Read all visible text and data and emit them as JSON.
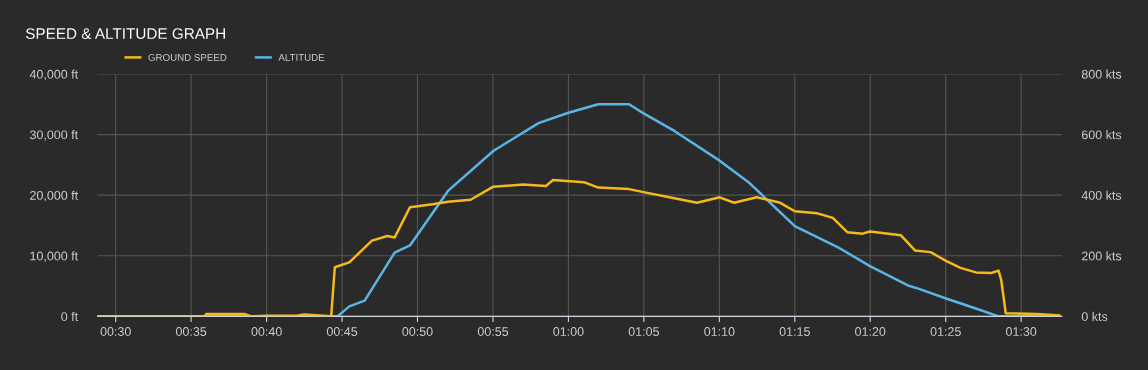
{
  "chart_data": {
    "type": "line",
    "title": "SPEED & ALTITUDE GRAPH",
    "series": [
      {
        "name": "GROUND SPEED",
        "color": "#f5b91d",
        "axis": "y2",
        "x": [
          0.48,
          0.598,
          0.6,
          0.642,
          0.65,
          0.667,
          0.7,
          0.708,
          0.738,
          0.742,
          0.758,
          0.783,
          0.8,
          0.808,
          0.825,
          0.85,
          0.867,
          0.892,
          0.917,
          0.95,
          0.975,
          0.983,
          1.017,
          1.033,
          1.067,
          1.083,
          1.117,
          1.142,
          1.167,
          1.183,
          1.208,
          1.233,
          1.25,
          1.275,
          1.292,
          1.308,
          1.325,
          1.333,
          1.367,
          1.383,
          1.4,
          1.417,
          1.433,
          1.45,
          1.467,
          1.475,
          1.478,
          1.483,
          1.517,
          1.542
        ],
        "values": [
          0,
          0,
          8,
          8,
          0,
          2,
          2,
          6,
          0,
          162,
          178,
          250,
          265,
          260,
          360,
          370,
          378,
          385,
          428,
          435,
          430,
          450,
          443,
          425,
          420,
          410,
          390,
          375,
          393,
          375,
          393,
          376,
          347,
          340,
          325,
          278,
          273,
          280,
          268,
          217,
          212,
          183,
          160,
          145,
          143,
          151,
          120,
          10,
          8,
          3
        ]
      },
      {
        "name": "ALTITUDE",
        "color": "#5ab4e5",
        "axis": "y",
        "x": [
          0.48,
          0.745,
          0.758,
          0.775,
          0.808,
          0.825,
          0.867,
          0.917,
          0.967,
          1.0,
          1.033,
          1.067,
          1.083,
          1.117,
          1.167,
          1.2,
          1.25,
          1.3,
          1.333,
          1.375,
          1.388,
          1.417,
          1.45,
          1.475,
          1.542
        ],
        "values": [
          0,
          0,
          1650,
          2600,
          10500,
          11700,
          20700,
          27300,
          31900,
          33600,
          35000,
          35000,
          33500,
          30600,
          25700,
          22000,
          14900,
          11200,
          8300,
          5100,
          4500,
          2950,
          1300,
          0,
          0
        ]
      }
    ],
    "xlim": [
      0.48,
      1.545
    ],
    "xticks": [
      {
        "value": 0.5,
        "label": "00:30"
      },
      {
        "value": 0.5833,
        "label": "00:35"
      },
      {
        "value": 0.6667,
        "label": "00:40"
      },
      {
        "value": 0.75,
        "label": "00:45"
      },
      {
        "value": 0.8333,
        "label": "00:50"
      },
      {
        "value": 0.9167,
        "label": "00:55"
      },
      {
        "value": 1.0,
        "label": "01:00"
      },
      {
        "value": 1.0833,
        "label": "01:05"
      },
      {
        "value": 1.1667,
        "label": "01:10"
      },
      {
        "value": 1.25,
        "label": "01:15"
      },
      {
        "value": 1.3333,
        "label": "01:20"
      },
      {
        "value": 1.4167,
        "label": "01:25"
      },
      {
        "value": 1.5,
        "label": "01:30"
      }
    ],
    "ylim": [
      0,
      40000
    ],
    "yticks": [
      {
        "value": 0,
        "label": "0 ft"
      },
      {
        "value": 10000,
        "label": "10,000 ft"
      },
      {
        "value": 20000,
        "label": "20,000 ft"
      },
      {
        "value": 30000,
        "label": "30,000 ft"
      },
      {
        "value": 40000,
        "label": "40,000 ft"
      }
    ],
    "y2lim": [
      0,
      800
    ],
    "y2ticks": [
      {
        "value": 0,
        "label": "0 kts"
      },
      {
        "value": 200,
        "label": "200 kts"
      },
      {
        "value": 400,
        "label": "400 kts"
      },
      {
        "value": 600,
        "label": "600 kts"
      },
      {
        "value": 800,
        "label": "800 kts"
      }
    ],
    "grid": true,
    "legend": "top left"
  }
}
